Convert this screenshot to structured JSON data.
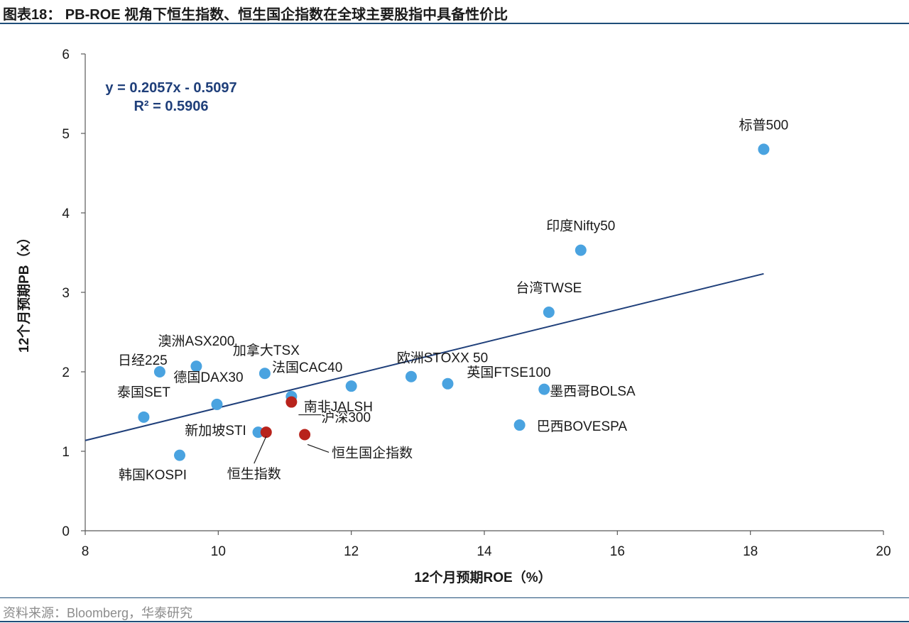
{
  "figure_title": "图表18： PB-ROE 视角下恒生指数、恒生国企指数在全球主要股指中具备性价比",
  "source": "资料来源：Bloomberg，华泰研究",
  "colors": {
    "point": "#4aa3e0",
    "highlight": "#b8231c",
    "trend": "#1f3f7a",
    "axis": "#595959",
    "rule": "#1f4e79"
  },
  "chart_data": {
    "type": "scatter",
    "xlabel": "12个月预期ROE（%）",
    "ylabel": "12个月预期PB（x）",
    "xlim": [
      8,
      20
    ],
    "ylim": [
      0,
      6
    ],
    "x_ticks": [
      8,
      10,
      12,
      14,
      16,
      18,
      20
    ],
    "y_ticks": [
      0,
      1,
      2,
      3,
      4,
      5,
      6
    ],
    "grid": false,
    "trendline": {
      "slope": 0.2057,
      "intercept": -0.5097,
      "x_range": [
        8,
        18.2
      ],
      "equation": "y = 0.2057x - 0.5097",
      "r2": "R² = 0.5906"
    },
    "points": [
      {
        "label": "标普500",
        "x": 18.2,
        "y": 4.8,
        "highlight": false
      },
      {
        "label": "印度Nifty50",
        "x": 15.45,
        "y": 3.53,
        "highlight": false
      },
      {
        "label": "台湾TWSE",
        "x": 14.97,
        "y": 2.75,
        "highlight": false
      },
      {
        "label": "墨西哥BOLSA",
        "x": 14.9,
        "y": 1.78,
        "highlight": false
      },
      {
        "label": "巴西BOVESPA",
        "x": 14.53,
        "y": 1.33,
        "highlight": false
      },
      {
        "label": "英国FTSE100",
        "x": 13.45,
        "y": 1.85,
        "highlight": false
      },
      {
        "label": "欧洲STOXX 50",
        "x": 12.9,
        "y": 1.94,
        "highlight": false
      },
      {
        "label": "法国CAC40",
        "x": 12.0,
        "y": 1.82,
        "highlight": false
      },
      {
        "label": "南非JALSH",
        "x": 11.1,
        "y": 1.69,
        "highlight": false
      },
      {
        "label": "加拿大TSX",
        "x": 10.7,
        "y": 1.98,
        "highlight": false
      },
      {
        "label": "澳洲ASX200",
        "x": 9.67,
        "y": 2.07,
        "highlight": false
      },
      {
        "label": "日经225",
        "x": 9.12,
        "y": 2.0,
        "highlight": false
      },
      {
        "label": "德国DAX30",
        "x": 9.98,
        "y": 1.59,
        "highlight": false
      },
      {
        "label": "泰国SET",
        "x": 8.88,
        "y": 1.43,
        "highlight": false
      },
      {
        "label": "新加坡STI",
        "x": 10.6,
        "y": 1.24,
        "highlight": false
      },
      {
        "label": "韩国KOSPI",
        "x": 9.42,
        "y": 0.95,
        "highlight": false
      },
      {
        "label": "沪深300",
        "x": 11.1,
        "y": 1.62,
        "highlight": true
      },
      {
        "label": "恒生指数",
        "x": 10.72,
        "y": 1.24,
        "highlight": true
      },
      {
        "label": "恒生国企指数",
        "x": 11.3,
        "y": 1.21,
        "highlight": true
      }
    ]
  }
}
